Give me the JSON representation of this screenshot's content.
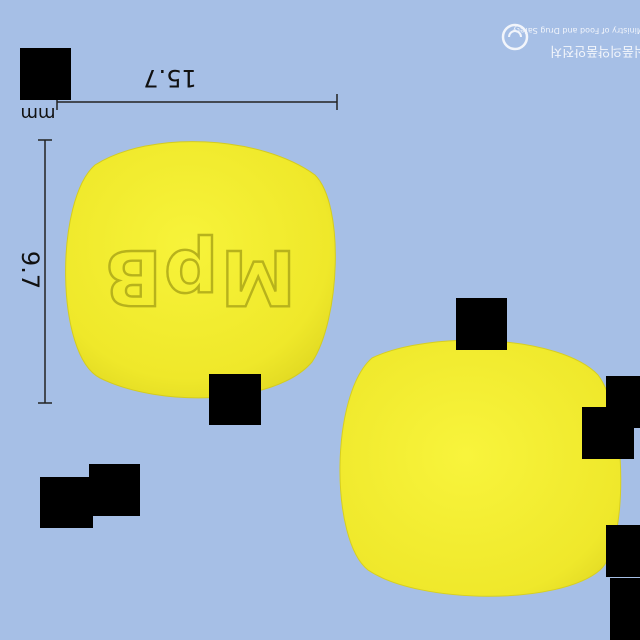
{
  "photo": {
    "background_color": "#a6bfe6",
    "pill_color": "#f2ee2e",
    "imprint": "MpB",
    "imprint_display": "mirrored",
    "measurement_width": "15.7",
    "measurement_height": "9.7",
    "unit": "mm",
    "logo_text": "식품의약품안전처",
    "logo_subtext": "Ministry of Food and Drug Safety"
  }
}
